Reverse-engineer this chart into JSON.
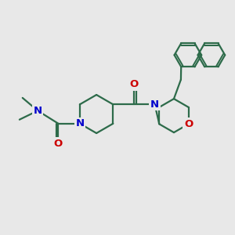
{
  "bg_color": "#e8e8e8",
  "bond_color": "#2d6b4a",
  "N_color": "#0000cc",
  "O_color": "#cc0000",
  "line_width": 1.6,
  "font_size": 9.5,
  "fig_size": [
    3.0,
    3.0
  ],
  "dpi": 100,
  "xlim": [
    0,
    10
  ],
  "ylim": [
    0,
    10
  ]
}
